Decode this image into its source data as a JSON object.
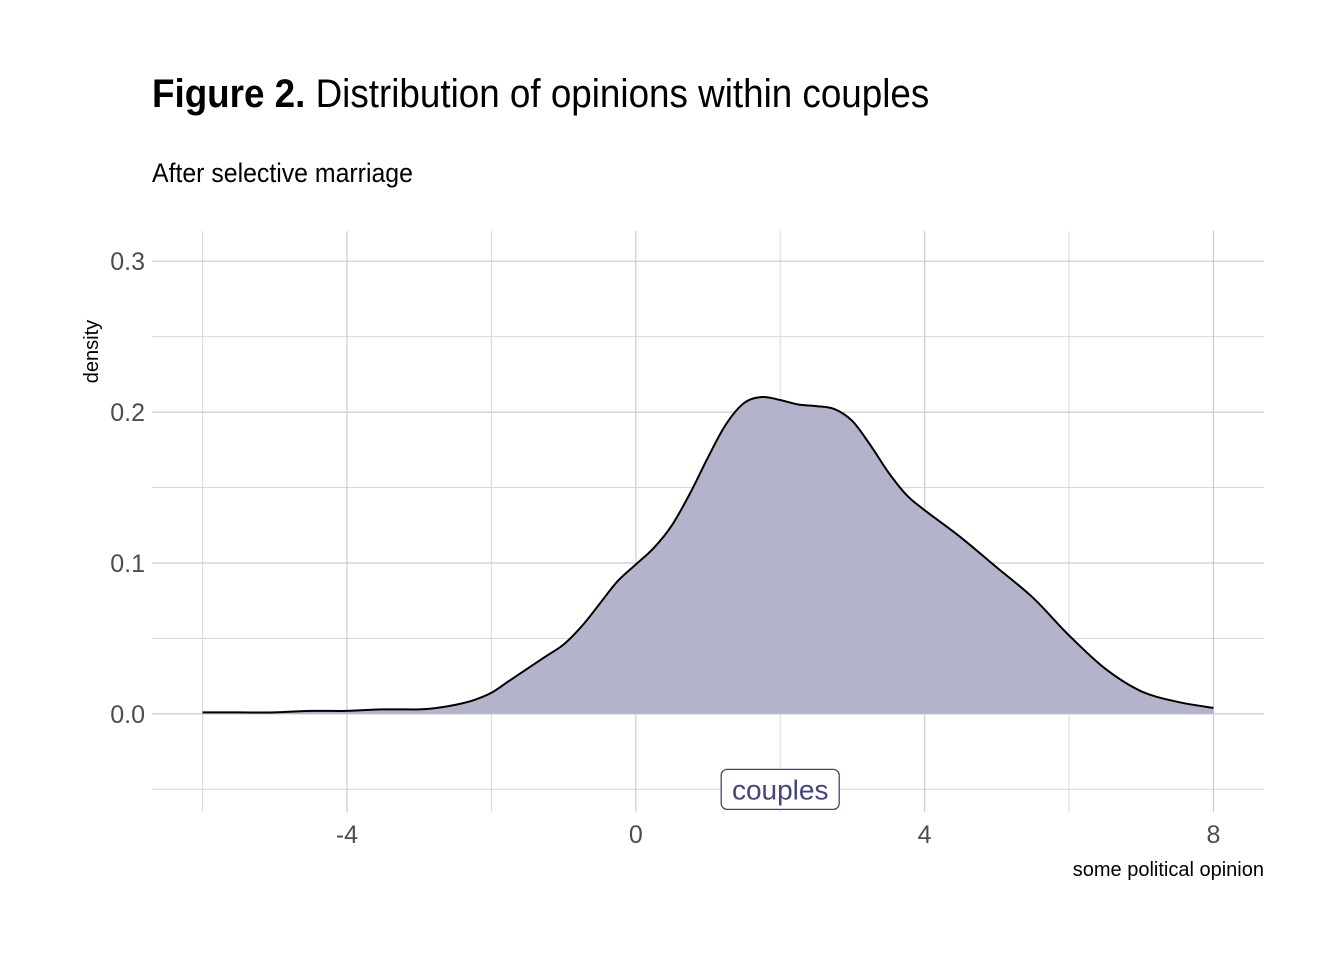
{
  "title": {
    "bold": "Figure 2.",
    "rest": "Distribution of opinions within couples"
  },
  "subtitle": "After selective marriage",
  "chart_data": {
    "type": "area",
    "xlabel": "some political opinion",
    "ylabel": "density",
    "xlim": [
      -6.7,
      8.7
    ],
    "ylim": [
      -0.065,
      0.32
    ],
    "x_ticks": [
      -4,
      0,
      4,
      8
    ],
    "x_tick_labels": [
      "-4",
      "0",
      "4",
      "8"
    ],
    "y_ticks": [
      0.0,
      0.1,
      0.2,
      0.3
    ],
    "y_tick_labels": [
      "0.0",
      "0.1",
      "0.2",
      "0.3"
    ],
    "grid": true,
    "fill_color": "#b3b3cc",
    "line_color": "#000000",
    "annotation": {
      "text": "couples",
      "x": 2,
      "y": -0.05,
      "color": "#45457a"
    },
    "series": [
      {
        "x": [
          -6,
          -5.5,
          -5,
          -4.5,
          -4,
          -3.5,
          -3,
          -2.75,
          -2.5,
          -2.25,
          -2,
          -1.75,
          -1.5,
          -1.25,
          -1,
          -0.75,
          -0.5,
          -0.25,
          0,
          0.25,
          0.5,
          0.75,
          1,
          1.25,
          1.5,
          1.75,
          2,
          2.25,
          2.5,
          2.75,
          3,
          3.25,
          3.5,
          3.75,
          4,
          4.5,
          5,
          5.5,
          6,
          6.5,
          7,
          7.5,
          8
        ],
        "y": [
          0.001,
          0.001,
          0.001,
          0.002,
          0.002,
          0.003,
          0.003,
          0.004,
          0.006,
          0.009,
          0.014,
          0.022,
          0.03,
          0.038,
          0.046,
          0.058,
          0.073,
          0.088,
          0.099,
          0.11,
          0.125,
          0.146,
          0.17,
          0.192,
          0.206,
          0.21,
          0.208,
          0.205,
          0.204,
          0.202,
          0.194,
          0.178,
          0.16,
          0.145,
          0.135,
          0.117,
          0.097,
          0.077,
          0.052,
          0.03,
          0.015,
          0.008,
          0.004
        ]
      }
    ]
  }
}
